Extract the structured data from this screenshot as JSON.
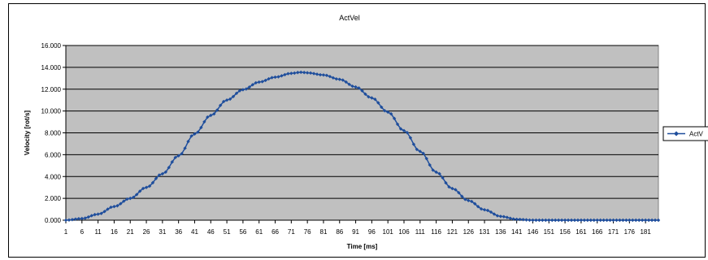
{
  "chart_data": {
    "type": "line",
    "title": "ActVel",
    "xlabel": "Time [ms]",
    "ylabel": "Velocity [rot/s]",
    "ylim": [
      0,
      16
    ],
    "yticks": [
      0,
      2,
      4,
      6,
      8,
      10,
      12,
      14,
      16
    ],
    "ytick_labels": [
      "0.000",
      "2.000",
      "4.000",
      "6.000",
      "8.000",
      "10.000",
      "12.000",
      "14.000",
      "16.000"
    ],
    "xticks": [
      1,
      6,
      11,
      16,
      21,
      26,
      31,
      36,
      41,
      46,
      51,
      56,
      61,
      66,
      71,
      76,
      81,
      86,
      91,
      96,
      101,
      106,
      111,
      116,
      121,
      126,
      131,
      136,
      141,
      146,
      151,
      156,
      161,
      166,
      171,
      176,
      181
    ],
    "x_range": [
      1,
      185
    ],
    "grid": "horizontal",
    "plot_background": "#C0C0C0",
    "legend_position": "right",
    "series": [
      {
        "name": "ActV",
        "color": "#1F4E9C",
        "marker": "diamond",
        "x": [
          1,
          6,
          11,
          16,
          21,
          26,
          31,
          36,
          41,
          46,
          51,
          56,
          61,
          66,
          71,
          74,
          76,
          81,
          86,
          91,
          96,
          101,
          106,
          111,
          116,
          121,
          126,
          131,
          136,
          141,
          146,
          151,
          156,
          161,
          166,
          171,
          176,
          181,
          185
        ],
        "values": [
          0.0,
          0.15,
          0.55,
          1.25,
          2.0,
          3.0,
          4.25,
          5.9,
          7.9,
          9.6,
          11.0,
          11.95,
          12.65,
          13.1,
          13.45,
          13.55,
          13.5,
          13.3,
          12.9,
          12.2,
          11.2,
          9.9,
          8.2,
          6.3,
          4.4,
          2.9,
          1.8,
          0.95,
          0.35,
          0.08,
          0.0,
          0.0,
          0.0,
          0.0,
          0.0,
          0.0,
          0.0,
          0.0,
          0.0
        ]
      }
    ]
  }
}
